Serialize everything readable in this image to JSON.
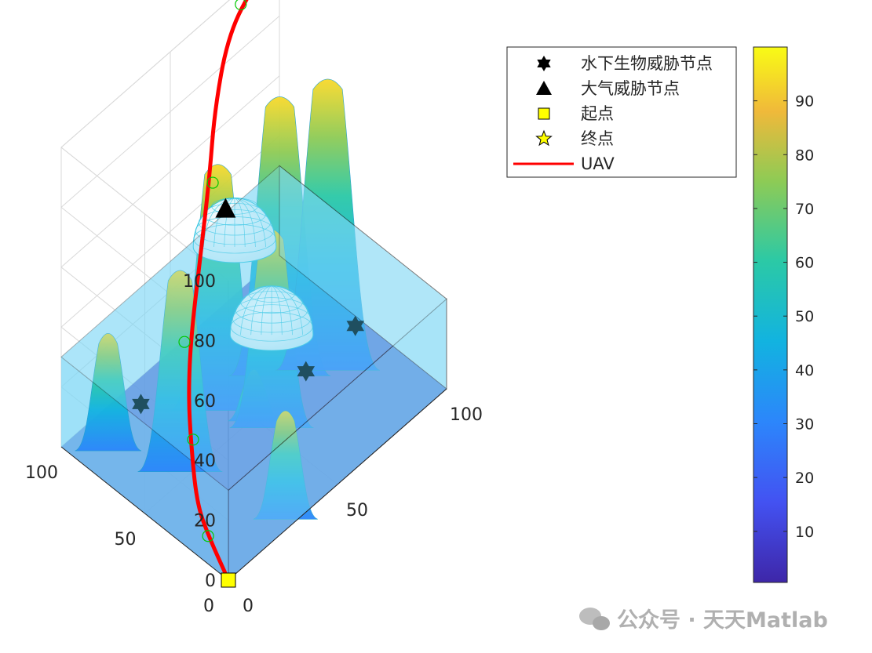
{
  "chart_data": {
    "type": "surface3d",
    "title": "",
    "xlabel": "",
    "ylabel": "",
    "zlabel": "",
    "xlim": [
      0,
      100
    ],
    "ylim": [
      0,
      100
    ],
    "zlim": [
      0,
      100
    ],
    "x_ticks": [
      "0",
      "50",
      "100"
    ],
    "y_ticks": [
      "0",
      "50",
      "100"
    ],
    "z_ticks": [
      "0",
      "20",
      "40",
      "60",
      "80",
      "100"
    ],
    "grid": true,
    "water_level": 30,
    "terrain_peaks": [
      {
        "x": 20,
        "y": 55,
        "height": 68
      },
      {
        "x": 10,
        "y": 85,
        "height": 40
      },
      {
        "x": 45,
        "y": 65,
        "height": 83
      },
      {
        "x": 52,
        "y": 42,
        "height": 67
      },
      {
        "x": 68,
        "y": 58,
        "height": 94
      },
      {
        "x": 80,
        "y": 45,
        "height": 98
      },
      {
        "x": 30,
        "y": 5,
        "height": 37
      },
      {
        "x": 50,
        "y": 50,
        "height": 18
      }
    ],
    "series": [
      {
        "name": "水下生物威胁节点",
        "marker": "hexagram",
        "points": [
          [
            25,
            85,
            5
          ],
          [
            70,
            45,
            5
          ],
          [
            85,
            35,
            15
          ]
        ]
      },
      {
        "name": "大气威胁节点",
        "marker": "triangle",
        "points": [
          [
            60,
            80,
            50
          ]
        ]
      },
      {
        "name": "起点",
        "marker": "square",
        "points": [
          [
            0,
            0,
            0
          ]
        ]
      },
      {
        "name": "终点",
        "marker": "pentagram",
        "points": [
          [
            100,
            100,
            100
          ]
        ]
      },
      {
        "name": "UAV",
        "line": "solid",
        "points": [
          [
            0,
            0,
            0
          ],
          [
            5,
            18,
            3
          ],
          [
            10,
            32,
            5
          ],
          [
            15,
            42,
            18
          ],
          [
            20,
            50,
            27
          ],
          [
            25,
            55,
            41
          ],
          [
            35,
            62,
            60
          ],
          [
            45,
            70,
            75
          ],
          [
            55,
            80,
            86
          ],
          [
            70,
            92,
            95
          ],
          [
            85,
            98,
            99
          ],
          [
            100,
            100,
            100
          ]
        ]
      }
    ],
    "waypoint_markers": [
      [
        6,
        20,
        2
      ],
      [
        16,
        42,
        18
      ],
      [
        22,
        55,
        41
      ],
      [
        48,
        72,
        70
      ],
      [
        80,
        97,
        98
      ]
    ],
    "threat_domes": [
      {
        "x": 52,
        "y": 42,
        "z": 30,
        "radius": 16
      },
      {
        "x": 68,
        "y": 85,
        "z": 30,
        "radius": 16
      }
    ],
    "colorbar": {
      "ticks": [
        "10",
        "20",
        "30",
        "40",
        "50",
        "60",
        "70",
        "80",
        "90"
      ],
      "range": [
        0.5,
        100
      ],
      "colormap": "parula"
    },
    "legend_position": "top-right"
  },
  "watermark": "公众号 · 天天Matlab",
  "colors": {
    "water": "#7fd8f6",
    "path": "#ff0000",
    "waypoint": "#00c800",
    "threat_dome": "#e8f4ff",
    "threat_dome_edge": "#2ec4e0"
  }
}
